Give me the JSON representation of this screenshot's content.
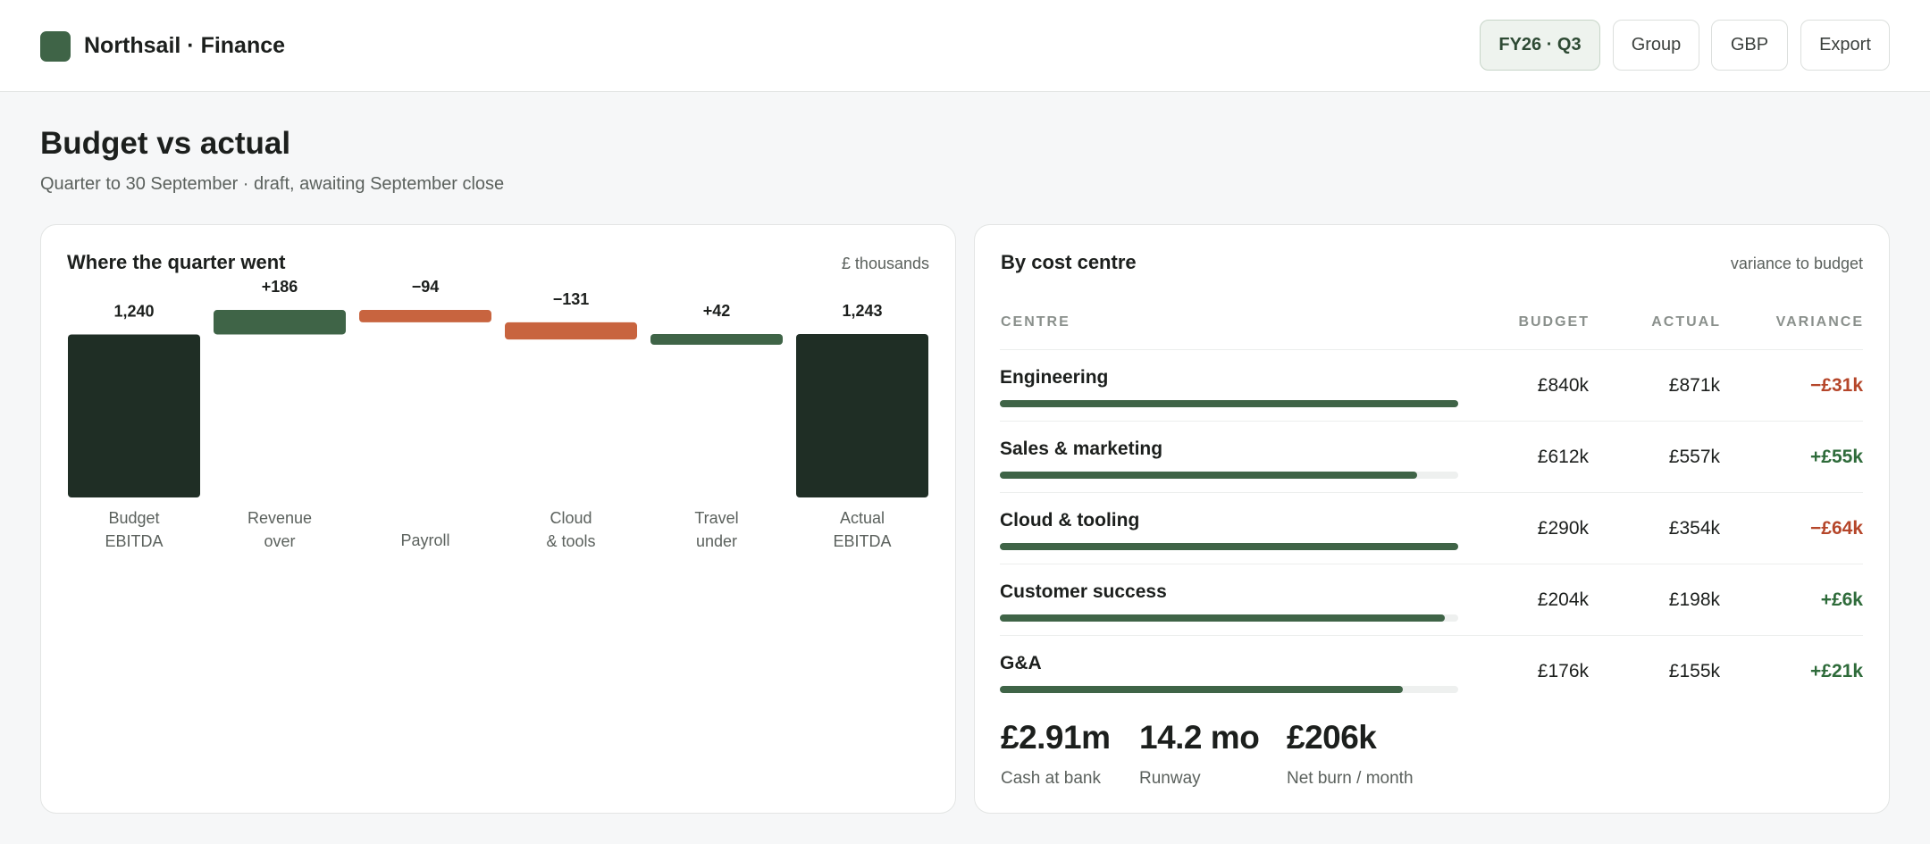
{
  "app": {
    "name": "Northsail · Finance"
  },
  "toolbar": {
    "period": "FY26 · Q3",
    "entity": "Group",
    "currency": "GBP",
    "export": "Export"
  },
  "page": {
    "title": "Budget vs actual",
    "subtitle": "Quarter to 30 September · draft, awaiting September close"
  },
  "waterfall": {
    "title": "Where the quarter went",
    "unit_note": "£ thousands"
  },
  "chart_data": {
    "type": "bar",
    "subtype": "waterfall",
    "title": "Where the quarter went",
    "unit": "£ thousands",
    "categories": [
      [
        "Budget",
        "EBITDA"
      ],
      [
        "Revenue",
        "over"
      ],
      [
        "Payroll"
      ],
      [
        "Cloud",
        "& tools"
      ],
      [
        "Travel",
        "under"
      ],
      [
        "Actual",
        "EBITDA"
      ]
    ],
    "values": [
      1240,
      186,
      -94,
      -131,
      42,
      1243
    ],
    "kinds": [
      "total",
      "delta",
      "delta",
      "delta",
      "delta",
      "total"
    ],
    "labels": [
      "1,240",
      "+186",
      "−94",
      "−131",
      "+42",
      "1,243"
    ],
    "colors": {
      "total": "#1f2e25",
      "positive": "#3f6447",
      "negative": "#c8643f"
    }
  },
  "cost_centres": {
    "title": "By cost centre",
    "note": "variance to budget",
    "headers": {
      "centre": "CENTRE",
      "budget": "BUDGET",
      "actual": "ACTUAL",
      "variance": "VARIANCE"
    },
    "rows": [
      {
        "name": "Engineering",
        "budget": "£840k",
        "actual": "£871k",
        "variance": "−£31k",
        "sign": "neg",
        "bar_fraction": 1.0
      },
      {
        "name": "Sales & marketing",
        "budget": "£612k",
        "actual": "£557k",
        "variance": "+£55k",
        "sign": "pos",
        "bar_fraction": 0.91
      },
      {
        "name": "Cloud & tooling",
        "budget": "£290k",
        "actual": "£354k",
        "variance": "−£64k",
        "sign": "neg",
        "bar_fraction": 1.0
      },
      {
        "name": "Customer success",
        "budget": "£204k",
        "actual": "£198k",
        "variance": "+£6k",
        "sign": "pos",
        "bar_fraction": 0.97
      },
      {
        "name": "G&A",
        "budget": "£176k",
        "actual": "£155k",
        "variance": "+£21k",
        "sign": "pos",
        "bar_fraction": 0.88
      }
    ]
  },
  "kpis": [
    {
      "value": "£2.91m",
      "label": "Cash at bank"
    },
    {
      "value": "14.2 mo",
      "label": "Runway"
    },
    {
      "value": "£206k",
      "label": "Net burn / month"
    }
  ],
  "colors": {
    "accent": "#3f6447",
    "negative": "#b5462a",
    "positive": "#2e6b3a"
  }
}
